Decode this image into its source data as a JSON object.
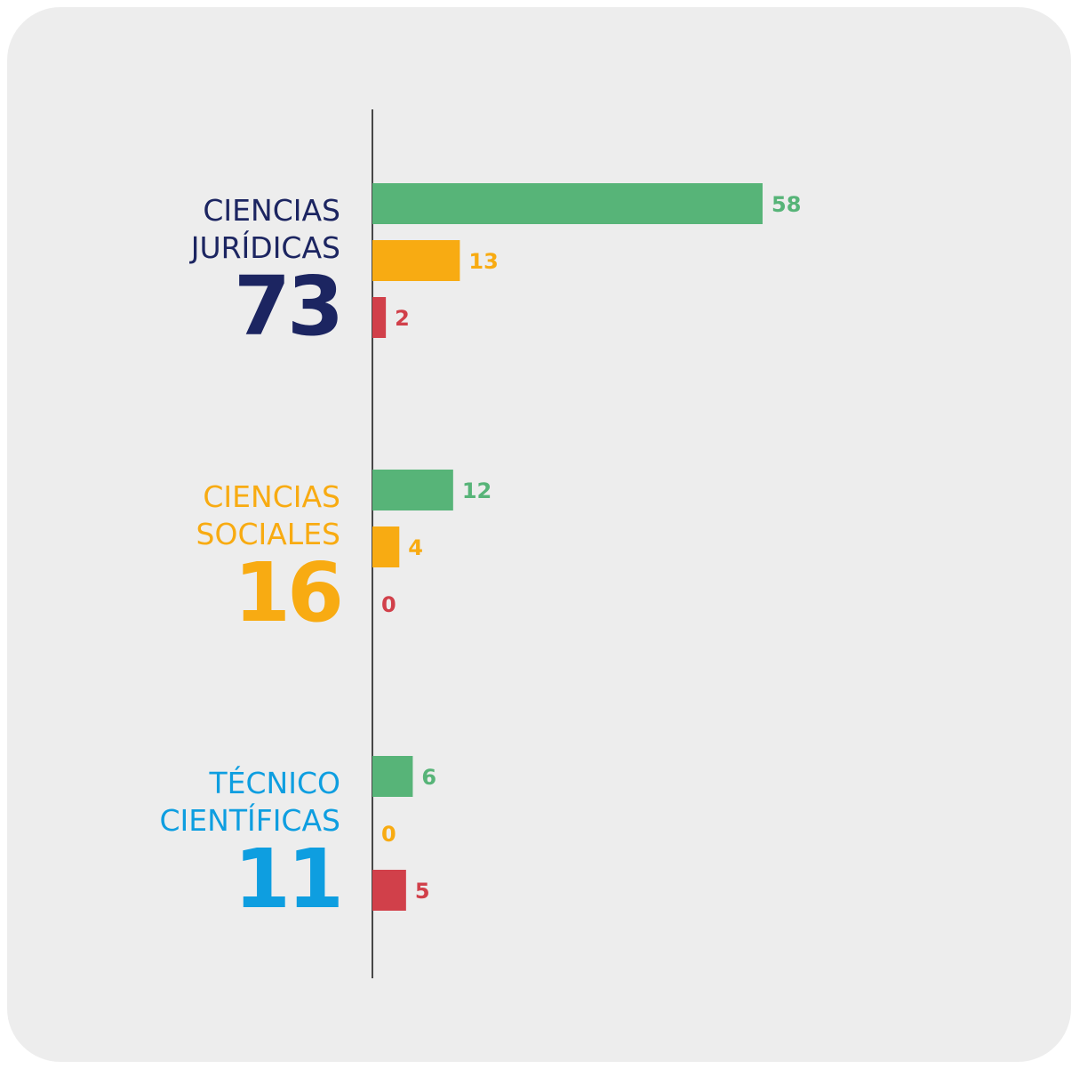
{
  "chart_data": {
    "type": "bar",
    "orientation": "horizontal",
    "categories": [
      [
        "CIENCIAS",
        "JURÍDICAS"
      ],
      [
        "CIENCIAS",
        "SOCIALES"
      ],
      [
        "TÉCNICO",
        "CIENTÍFICAS"
      ]
    ],
    "totals": [
      73,
      16,
      11
    ],
    "category_colors": [
      "#1c2561",
      "#f8ab12",
      "#0e9ee0"
    ],
    "series": [
      {
        "color": "#57b478",
        "values": [
          58,
          12,
          6
        ]
      },
      {
        "color": "#f8ab12",
        "values": [
          13,
          4,
          0
        ]
      },
      {
        "color": "#d1404a",
        "values": [
          2,
          0,
          5
        ]
      }
    ],
    "xlim": [
      0,
      58
    ]
  }
}
